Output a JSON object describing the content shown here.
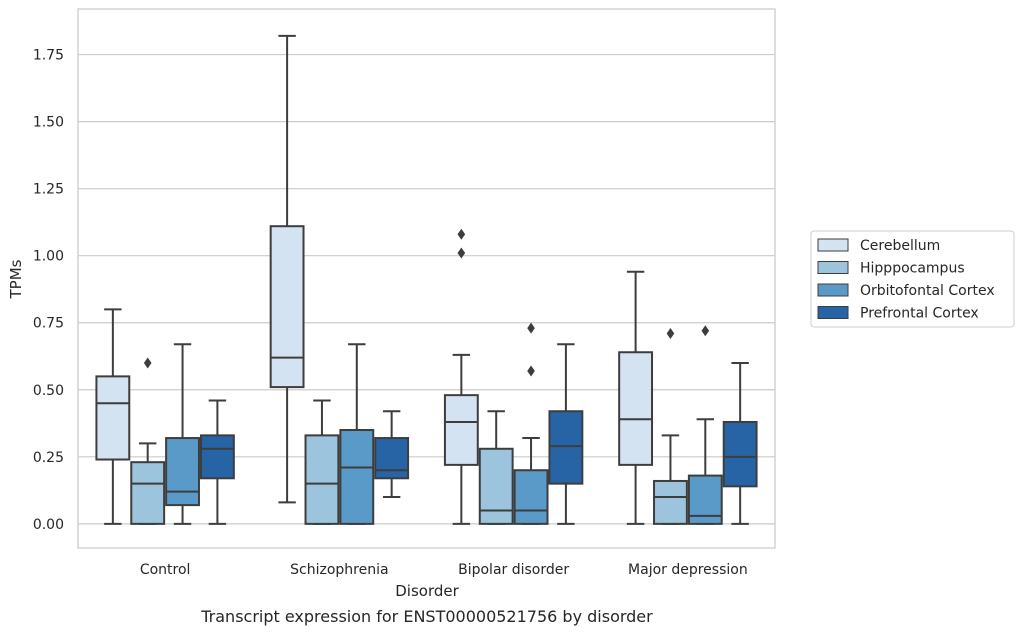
{
  "chart_data": {
    "type": "boxplot",
    "xlabel": "Disorder",
    "ylabel": "TPMs",
    "caption": "Transcript expression for ENST00000521756 by disorder",
    "ylim": [
      -0.09,
      1.92
    ],
    "yticks": [
      "0.00",
      "0.25",
      "0.50",
      "0.75",
      "1.00",
      "1.25",
      "1.50",
      "1.75"
    ],
    "grid": "horizontal",
    "legend_position": "right",
    "categories": [
      "Control",
      "Schizophrenia",
      "Bipolar disorder",
      "Major depression"
    ],
    "series": [
      {
        "name": "Cerebellum",
        "color": "#d4e3f2",
        "boxes": [
          {
            "whisker_low": 0.0,
            "q1": 0.24,
            "median": 0.45,
            "q3": 0.55,
            "whisker_high": 0.8,
            "outliers": []
          },
          {
            "whisker_low": 0.08,
            "q1": 0.51,
            "median": 0.62,
            "q3": 1.11,
            "whisker_high": 1.82,
            "outliers": []
          },
          {
            "whisker_low": 0.0,
            "q1": 0.22,
            "median": 0.38,
            "q3": 0.48,
            "whisker_high": 0.63,
            "outliers": [
              1.01,
              1.08
            ]
          },
          {
            "whisker_low": 0.0,
            "q1": 0.22,
            "median": 0.39,
            "q3": 0.64,
            "whisker_high": 0.94,
            "outliers": []
          }
        ]
      },
      {
        "name": "Hipppocampus",
        "color": "#9cc4dd",
        "boxes": [
          {
            "whisker_low": 0.0,
            "q1": 0.0,
            "median": 0.15,
            "q3": 0.23,
            "whisker_high": 0.3,
            "outliers": [
              0.6
            ]
          },
          {
            "whisker_low": 0.0,
            "q1": 0.0,
            "median": 0.15,
            "q3": 0.33,
            "whisker_high": 0.46,
            "outliers": []
          },
          {
            "whisker_low": 0.0,
            "q1": 0.0,
            "median": 0.05,
            "q3": 0.28,
            "whisker_high": 0.42,
            "outliers": []
          },
          {
            "whisker_low": 0.0,
            "q1": 0.0,
            "median": 0.1,
            "q3": 0.16,
            "whisker_high": 0.33,
            "outliers": [
              0.71
            ]
          }
        ]
      },
      {
        "name": "Orbitofontal Cortex",
        "color": "#5a9ac8",
        "boxes": [
          {
            "whisker_low": 0.0,
            "q1": 0.07,
            "median": 0.12,
            "q3": 0.32,
            "whisker_high": 0.67,
            "outliers": []
          },
          {
            "whisker_low": 0.0,
            "q1": 0.0,
            "median": 0.21,
            "q3": 0.35,
            "whisker_high": 0.67,
            "outliers": []
          },
          {
            "whisker_low": 0.0,
            "q1": 0.0,
            "median": 0.05,
            "q3": 0.2,
            "whisker_high": 0.32,
            "outliers": [
              0.57,
              0.73
            ]
          },
          {
            "whisker_low": 0.0,
            "q1": 0.0,
            "median": 0.03,
            "q3": 0.18,
            "whisker_high": 0.39,
            "outliers": [
              0.72
            ]
          }
        ]
      },
      {
        "name": "Prefrontal Cortex",
        "color": "#2764a6",
        "boxes": [
          {
            "whisker_low": 0.0,
            "q1": 0.17,
            "median": 0.28,
            "q3": 0.33,
            "whisker_high": 0.46,
            "outliers": []
          },
          {
            "whisker_low": 0.1,
            "q1": 0.17,
            "median": 0.2,
            "q3": 0.32,
            "whisker_high": 0.42,
            "outliers": []
          },
          {
            "whisker_low": 0.0,
            "q1": 0.15,
            "median": 0.29,
            "q3": 0.42,
            "whisker_high": 0.67,
            "outliers": []
          },
          {
            "whisker_low": 0.0,
            "q1": 0.14,
            "median": 0.25,
            "q3": 0.38,
            "whisker_high": 0.6,
            "outliers": []
          }
        ]
      }
    ]
  }
}
